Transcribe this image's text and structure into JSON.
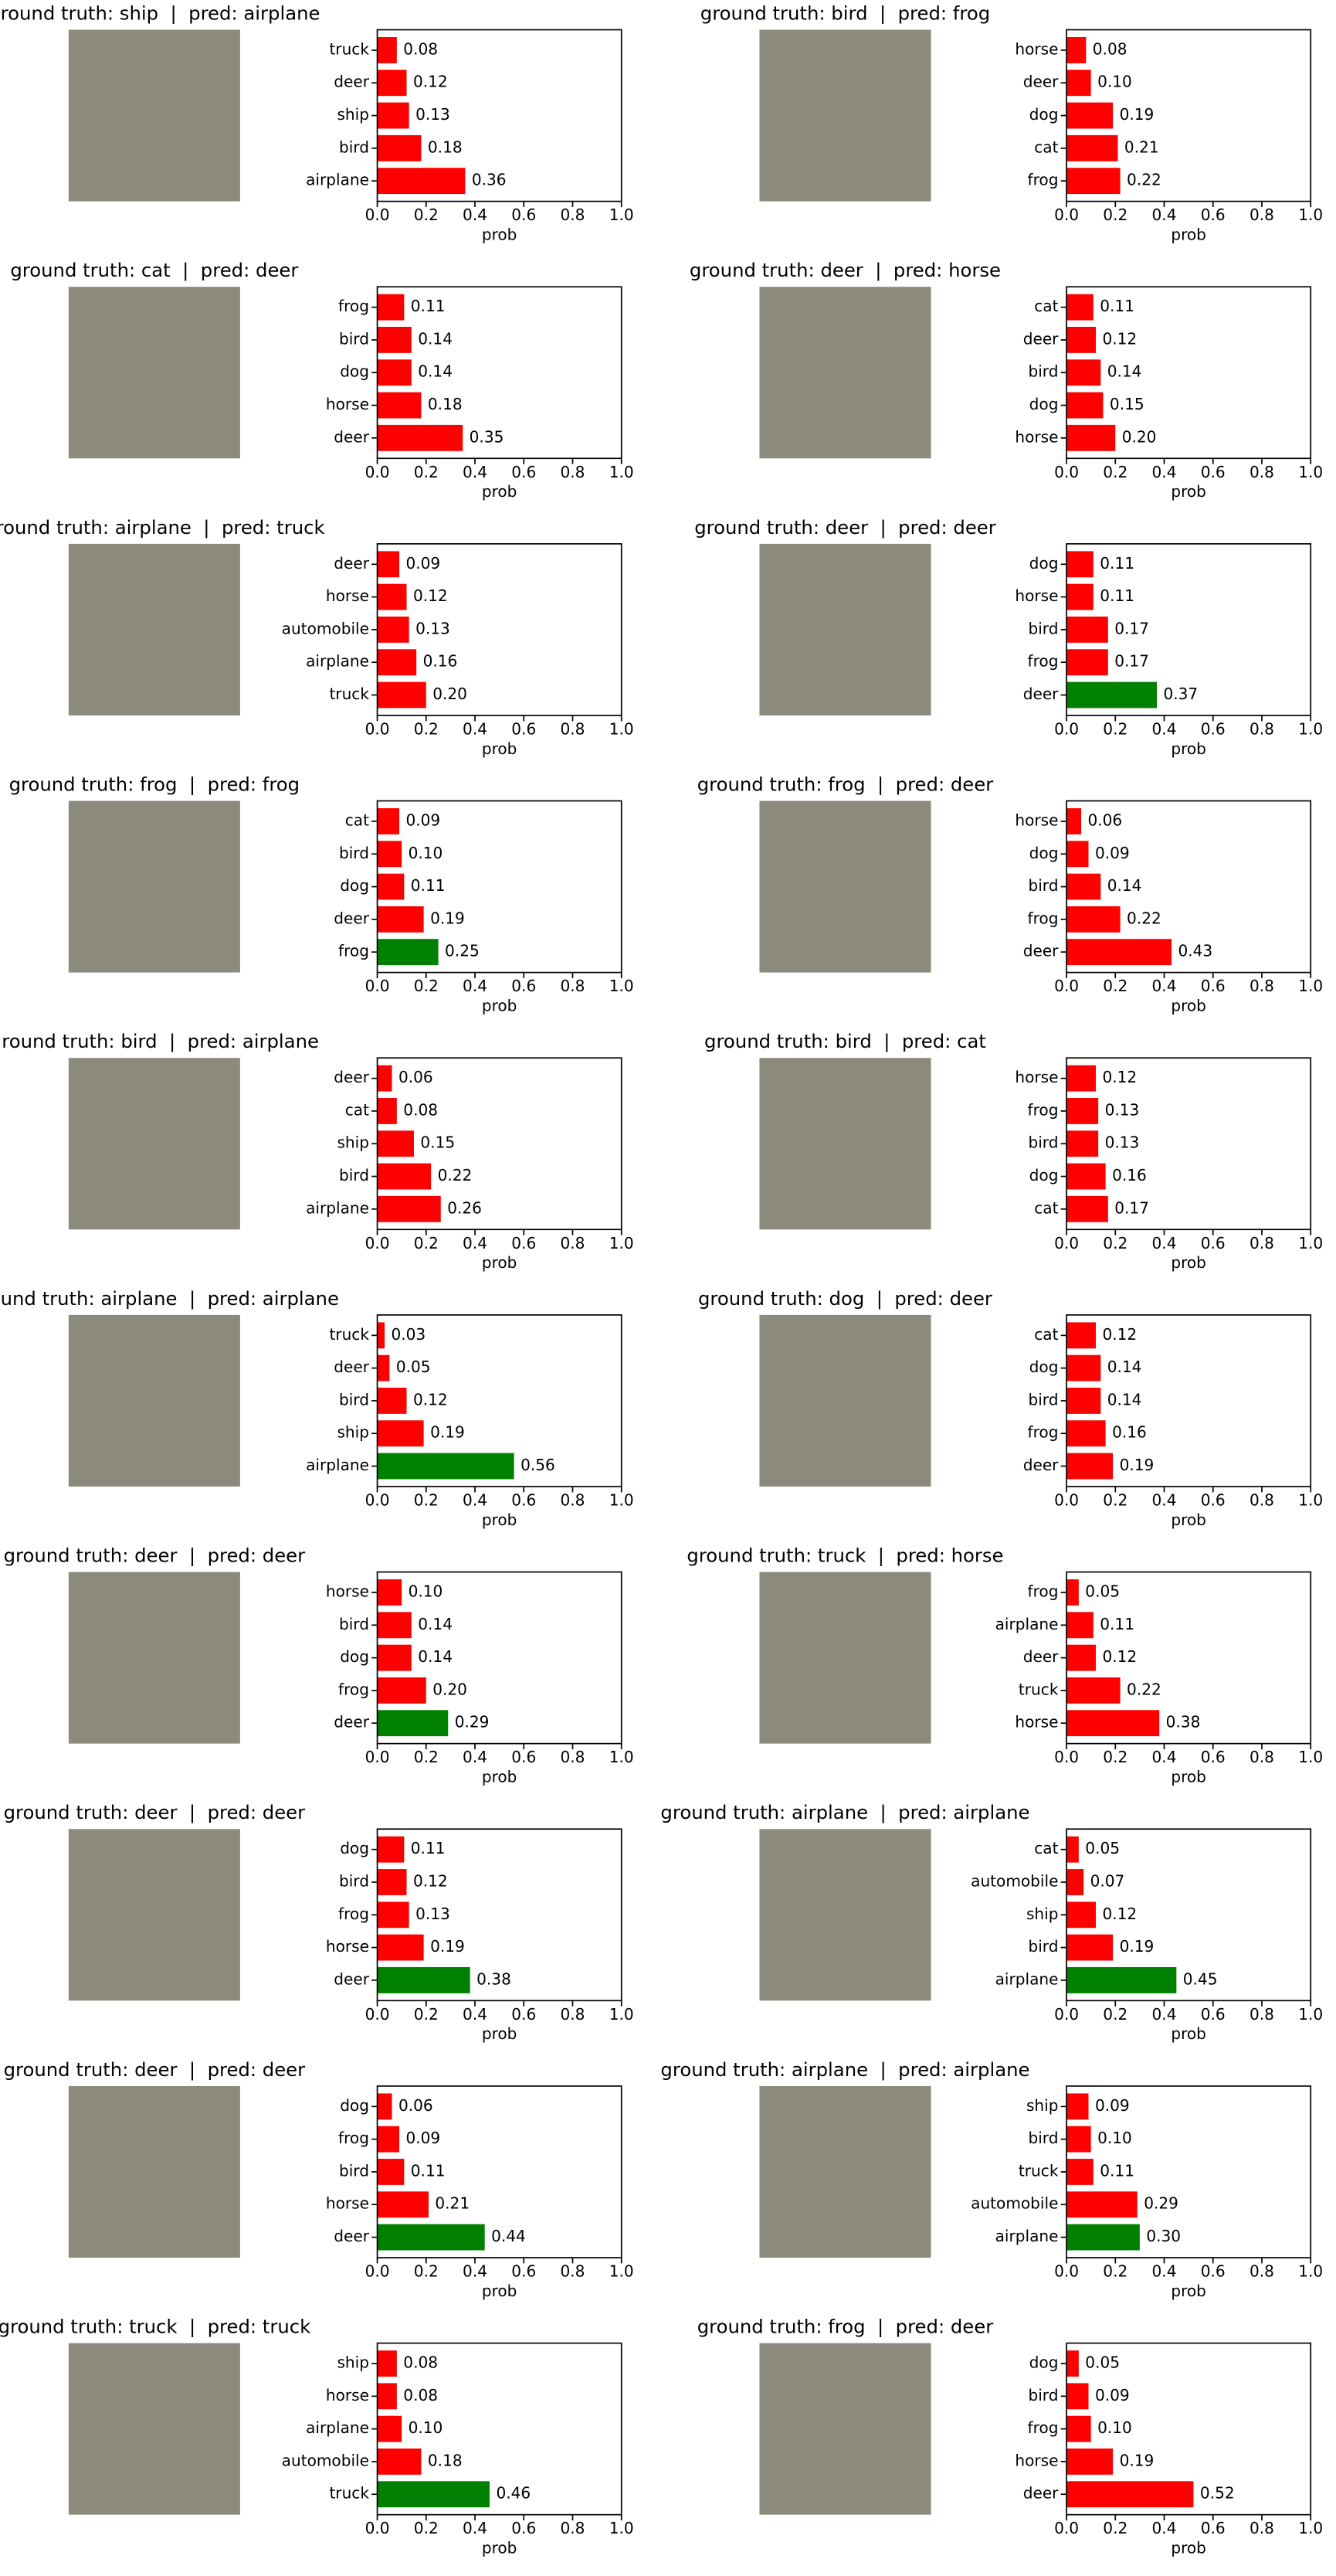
{
  "chart_data": [
    {
      "type": "bar",
      "orientation": "horizontal",
      "title": "ground truth: ship  |  pred: airplane",
      "categories": [
        "truck",
        "deer",
        "ship",
        "bird",
        "airplane"
      ],
      "values": [
        0.08,
        0.12,
        0.13,
        0.18,
        0.36
      ],
      "value_labels": [
        "0.08",
        "0.12",
        "0.13",
        "0.18",
        "0.36"
      ],
      "colors": [
        "#ff0000",
        "#ff0000",
        "#ff0000",
        "#ff0000",
        "#ff0000"
      ],
      "xlim": [
        0,
        1
      ],
      "xticks": [
        {
          "value": 0,
          "label": "0.0"
        },
        0.2,
        0.4,
        0.6,
        0.8,
        {
          "value": 1,
          "label": "1.0"
        }
      ],
      "xlabel": "prob"
    },
    {
      "type": "bar",
      "orientation": "horizontal",
      "title": "ground truth: bird  |  pred: frog",
      "categories": [
        "horse",
        "deer",
        "dog",
        "cat",
        "frog"
      ],
      "values": [
        0.08,
        0.1,
        0.19,
        0.21,
        0.22
      ],
      "value_labels": [
        "0.08",
        "0.10",
        "0.19",
        "0.21",
        "0.22"
      ],
      "colors": [
        "#ff0000",
        "#ff0000",
        "#ff0000",
        "#ff0000",
        "#ff0000"
      ],
      "xlim": [
        0,
        1
      ],
      "xticks": [
        {
          "value": 0,
          "label": "0.0"
        },
        0.2,
        0.4,
        0.6,
        0.8,
        {
          "value": 1,
          "label": "1.0"
        }
      ],
      "xlabel": "prob"
    },
    {
      "type": "bar",
      "orientation": "horizontal",
      "title": "ground truth: cat  |  pred: deer",
      "categories": [
        "frog",
        "bird",
        "dog",
        "horse",
        "deer"
      ],
      "values": [
        0.11,
        0.14,
        0.14,
        0.18,
        0.35
      ],
      "value_labels": [
        "0.11",
        "0.14",
        "0.14",
        "0.18",
        "0.35"
      ],
      "colors": [
        "#ff0000",
        "#ff0000",
        "#ff0000",
        "#ff0000",
        "#ff0000"
      ],
      "xlim": [
        0,
        1
      ],
      "xticks": [
        {
          "value": 0,
          "label": "0.0"
        },
        0.2,
        0.4,
        0.6,
        0.8,
        {
          "value": 1,
          "label": "1.0"
        }
      ],
      "xlabel": "prob"
    },
    {
      "type": "bar",
      "orientation": "horizontal",
      "title": "ground truth: deer  |  pred: horse",
      "categories": [
        "cat",
        "deer",
        "bird",
        "dog",
        "horse"
      ],
      "values": [
        0.11,
        0.12,
        0.14,
        0.15,
        0.2
      ],
      "value_labels": [
        "0.11",
        "0.12",
        "0.14",
        "0.15",
        "0.20"
      ],
      "colors": [
        "#ff0000",
        "#ff0000",
        "#ff0000",
        "#ff0000",
        "#ff0000"
      ],
      "xlim": [
        0,
        1
      ],
      "xticks": [
        {
          "value": 0,
          "label": "0.0"
        },
        0.2,
        0.4,
        0.6,
        0.8,
        {
          "value": 1,
          "label": "1.0"
        }
      ],
      "xlabel": "prob"
    },
    {
      "type": "bar",
      "orientation": "horizontal",
      "title": "ground truth: airplane  |  pred: truck",
      "categories": [
        "deer",
        "horse",
        "automobile",
        "airplane",
        "truck"
      ],
      "values": [
        0.09,
        0.12,
        0.13,
        0.16,
        0.2
      ],
      "value_labels": [
        "0.09",
        "0.12",
        "0.13",
        "0.16",
        "0.20"
      ],
      "colors": [
        "#ff0000",
        "#ff0000",
        "#ff0000",
        "#ff0000",
        "#ff0000"
      ],
      "xlim": [
        0,
        1
      ],
      "xticks": [
        {
          "value": 0,
          "label": "0.0"
        },
        0.2,
        0.4,
        0.6,
        0.8,
        {
          "value": 1,
          "label": "1.0"
        }
      ],
      "xlabel": "prob"
    },
    {
      "type": "bar",
      "orientation": "horizontal",
      "title": "ground truth: deer  |  pred: deer",
      "categories": [
        "dog",
        "horse",
        "bird",
        "frog",
        "deer"
      ],
      "values": [
        0.11,
        0.11,
        0.17,
        0.17,
        0.37
      ],
      "value_labels": [
        "0.11",
        "0.11",
        "0.17",
        "0.17",
        "0.37"
      ],
      "colors": [
        "#ff0000",
        "#ff0000",
        "#ff0000",
        "#ff0000",
        "#008000"
      ],
      "xlim": [
        0,
        1
      ],
      "xticks": [
        {
          "value": 0,
          "label": "0.0"
        },
        0.2,
        0.4,
        0.6,
        0.8,
        {
          "value": 1,
          "label": "1.0"
        }
      ],
      "xlabel": "prob"
    },
    {
      "type": "bar",
      "orientation": "horizontal",
      "title": "ground truth: frog  |  pred: frog",
      "categories": [
        "cat",
        "bird",
        "dog",
        "deer",
        "frog"
      ],
      "values": [
        0.09,
        0.1,
        0.11,
        0.19,
        0.25
      ],
      "value_labels": [
        "0.09",
        "0.10",
        "0.11",
        "0.19",
        "0.25"
      ],
      "colors": [
        "#ff0000",
        "#ff0000",
        "#ff0000",
        "#ff0000",
        "#008000"
      ],
      "xlim": [
        0,
        1
      ],
      "xticks": [
        {
          "value": 0,
          "label": "0.0"
        },
        0.2,
        0.4,
        0.6,
        0.8,
        {
          "value": 1,
          "label": "1.0"
        }
      ],
      "xlabel": "prob"
    },
    {
      "type": "bar",
      "orientation": "horizontal",
      "title": "ground truth: frog  |  pred: deer",
      "categories": [
        "horse",
        "dog",
        "bird",
        "frog",
        "deer"
      ],
      "values": [
        0.06,
        0.09,
        0.14,
        0.22,
        0.43
      ],
      "value_labels": [
        "0.06",
        "0.09",
        "0.14",
        "0.22",
        "0.43"
      ],
      "colors": [
        "#ff0000",
        "#ff0000",
        "#ff0000",
        "#ff0000",
        "#ff0000"
      ],
      "xlim": [
        0,
        1
      ],
      "xticks": [
        {
          "value": 0,
          "label": "0.0"
        },
        0.2,
        0.4,
        0.6,
        0.8,
        {
          "value": 1,
          "label": "1.0"
        }
      ],
      "xlabel": "prob"
    },
    {
      "type": "bar",
      "orientation": "horizontal",
      "title": "ground truth: bird  |  pred: airplane",
      "categories": [
        "deer",
        "cat",
        "ship",
        "bird",
        "airplane"
      ],
      "values": [
        0.06,
        0.08,
        0.15,
        0.22,
        0.26
      ],
      "value_labels": [
        "0.06",
        "0.08",
        "0.15",
        "0.22",
        "0.26"
      ],
      "colors": [
        "#ff0000",
        "#ff0000",
        "#ff0000",
        "#ff0000",
        "#ff0000"
      ],
      "xlim": [
        0,
        1
      ],
      "xticks": [
        {
          "value": 0,
          "label": "0.0"
        },
        0.2,
        0.4,
        0.6,
        0.8,
        {
          "value": 1,
          "label": "1.0"
        }
      ],
      "xlabel": "prob"
    },
    {
      "type": "bar",
      "orientation": "horizontal",
      "title": "ground truth: bird  |  pred: cat",
      "categories": [
        "horse",
        "frog",
        "bird",
        "dog",
        "cat"
      ],
      "values": [
        0.12,
        0.13,
        0.13,
        0.16,
        0.17
      ],
      "value_labels": [
        "0.12",
        "0.13",
        "0.13",
        "0.16",
        "0.17"
      ],
      "colors": [
        "#ff0000",
        "#ff0000",
        "#ff0000",
        "#ff0000",
        "#ff0000"
      ],
      "xlim": [
        0,
        1
      ],
      "xticks": [
        {
          "value": 0,
          "label": "0.0"
        },
        0.2,
        0.4,
        0.6,
        0.8,
        {
          "value": 1,
          "label": "1.0"
        }
      ],
      "xlabel": "prob"
    },
    {
      "type": "bar",
      "orientation": "horizontal",
      "title": "ground truth: airplane  |  pred: airplane",
      "categories": [
        "truck",
        "deer",
        "bird",
        "ship",
        "airplane"
      ],
      "values": [
        0.03,
        0.05,
        0.12,
        0.19,
        0.56
      ],
      "value_labels": [
        "0.03",
        "0.05",
        "0.12",
        "0.19",
        "0.56"
      ],
      "colors": [
        "#ff0000",
        "#ff0000",
        "#ff0000",
        "#ff0000",
        "#008000"
      ],
      "xlim": [
        0,
        1
      ],
      "xticks": [
        {
          "value": 0,
          "label": "0.0"
        },
        0.2,
        0.4,
        0.6,
        0.8,
        {
          "value": 1,
          "label": "1.0"
        }
      ],
      "xlabel": "prob"
    },
    {
      "type": "bar",
      "orientation": "horizontal",
      "title": "ground truth: dog  |  pred: deer",
      "categories": [
        "cat",
        "dog",
        "bird",
        "frog",
        "deer"
      ],
      "values": [
        0.12,
        0.14,
        0.14,
        0.16,
        0.19
      ],
      "value_labels": [
        "0.12",
        "0.14",
        "0.14",
        "0.16",
        "0.19"
      ],
      "colors": [
        "#ff0000",
        "#ff0000",
        "#ff0000",
        "#ff0000",
        "#ff0000"
      ],
      "xlim": [
        0,
        1
      ],
      "xticks": [
        {
          "value": 0,
          "label": "0.0"
        },
        0.2,
        0.4,
        0.6,
        0.8,
        {
          "value": 1,
          "label": "1.0"
        }
      ],
      "xlabel": "prob"
    },
    {
      "type": "bar",
      "orientation": "horizontal",
      "title": "ground truth: deer  |  pred: deer",
      "categories": [
        "horse",
        "bird",
        "dog",
        "frog",
        "deer"
      ],
      "values": [
        0.1,
        0.14,
        0.14,
        0.2,
        0.29
      ],
      "value_labels": [
        "0.10",
        "0.14",
        "0.14",
        "0.20",
        "0.29"
      ],
      "colors": [
        "#ff0000",
        "#ff0000",
        "#ff0000",
        "#ff0000",
        "#008000"
      ],
      "xlim": [
        0,
        1
      ],
      "xticks": [
        {
          "value": 0,
          "label": "0.0"
        },
        0.2,
        0.4,
        0.6,
        0.8,
        {
          "value": 1,
          "label": "1.0"
        }
      ],
      "xlabel": "prob"
    },
    {
      "type": "bar",
      "orientation": "horizontal",
      "title": "ground truth: truck  |  pred: horse",
      "categories": [
        "frog",
        "airplane",
        "deer",
        "truck",
        "horse"
      ],
      "values": [
        0.05,
        0.11,
        0.12,
        0.22,
        0.38
      ],
      "value_labels": [
        "0.05",
        "0.11",
        "0.12",
        "0.22",
        "0.38"
      ],
      "colors": [
        "#ff0000",
        "#ff0000",
        "#ff0000",
        "#ff0000",
        "#ff0000"
      ],
      "xlim": [
        0,
        1
      ],
      "xticks": [
        {
          "value": 0,
          "label": "0.0"
        },
        0.2,
        0.4,
        0.6,
        0.8,
        {
          "value": 1,
          "label": "1.0"
        }
      ],
      "xlabel": "prob"
    },
    {
      "type": "bar",
      "orientation": "horizontal",
      "title": "ground truth: deer  |  pred: deer",
      "categories": [
        "dog",
        "bird",
        "frog",
        "horse",
        "deer"
      ],
      "values": [
        0.11,
        0.12,
        0.13,
        0.19,
        0.38
      ],
      "value_labels": [
        "0.11",
        "0.12",
        "0.13",
        "0.19",
        "0.38"
      ],
      "colors": [
        "#ff0000",
        "#ff0000",
        "#ff0000",
        "#ff0000",
        "#008000"
      ],
      "xlim": [
        0,
        1
      ],
      "xticks": [
        {
          "value": 0,
          "label": "0.0"
        },
        0.2,
        0.4,
        0.6,
        0.8,
        {
          "value": 1,
          "label": "1.0"
        }
      ],
      "xlabel": "prob"
    },
    {
      "type": "bar",
      "orientation": "horizontal",
      "title": "ground truth: airplane  |  pred: airplane",
      "categories": [
        "cat",
        "automobile",
        "ship",
        "bird",
        "airplane"
      ],
      "values": [
        0.05,
        0.07,
        0.12,
        0.19,
        0.45
      ],
      "value_labels": [
        "0.05",
        "0.07",
        "0.12",
        "0.19",
        "0.45"
      ],
      "colors": [
        "#ff0000",
        "#ff0000",
        "#ff0000",
        "#ff0000",
        "#008000"
      ],
      "xlim": [
        0,
        1
      ],
      "xticks": [
        {
          "value": 0,
          "label": "0.0"
        },
        0.2,
        0.4,
        0.6,
        0.8,
        {
          "value": 1,
          "label": "1.0"
        }
      ],
      "xlabel": "prob"
    },
    {
      "type": "bar",
      "orientation": "horizontal",
      "title": "ground truth: deer  |  pred: deer",
      "categories": [
        "dog",
        "frog",
        "bird",
        "horse",
        "deer"
      ],
      "values": [
        0.06,
        0.09,
        0.11,
        0.21,
        0.44
      ],
      "value_labels": [
        "0.06",
        "0.09",
        "0.11",
        "0.21",
        "0.44"
      ],
      "colors": [
        "#ff0000",
        "#ff0000",
        "#ff0000",
        "#ff0000",
        "#008000"
      ],
      "xlim": [
        0,
        1
      ],
      "xticks": [
        {
          "value": 0,
          "label": "0.0"
        },
        0.2,
        0.4,
        0.6,
        0.8,
        {
          "value": 1,
          "label": "1.0"
        }
      ],
      "xlabel": "prob"
    },
    {
      "type": "bar",
      "orientation": "horizontal",
      "title": "ground truth: airplane  |  pred: airplane",
      "categories": [
        "ship",
        "bird",
        "truck",
        "automobile",
        "airplane"
      ],
      "values": [
        0.09,
        0.1,
        0.11,
        0.29,
        0.3
      ],
      "value_labels": [
        "0.09",
        "0.10",
        "0.11",
        "0.29",
        "0.30"
      ],
      "colors": [
        "#ff0000",
        "#ff0000",
        "#ff0000",
        "#ff0000",
        "#008000"
      ],
      "xlim": [
        0,
        1
      ],
      "xticks": [
        {
          "value": 0,
          "label": "0.0"
        },
        0.2,
        0.4,
        0.6,
        0.8,
        {
          "value": 1,
          "label": "1.0"
        }
      ],
      "xlabel": "prob"
    },
    {
      "type": "bar",
      "orientation": "horizontal",
      "title": "ground truth: truck  |  pred: truck",
      "categories": [
        "ship",
        "horse",
        "airplane",
        "automobile",
        "truck"
      ],
      "values": [
        0.08,
        0.08,
        0.1,
        0.18,
        0.46
      ],
      "value_labels": [
        "0.08",
        "0.08",
        "0.10",
        "0.18",
        "0.46"
      ],
      "colors": [
        "#ff0000",
        "#ff0000",
        "#ff0000",
        "#ff0000",
        "#008000"
      ],
      "xlim": [
        0,
        1
      ],
      "xticks": [
        {
          "value": 0,
          "label": "0.0"
        },
        0.2,
        0.4,
        0.6,
        0.8,
        {
          "value": 1,
          "label": "1.0"
        }
      ],
      "xlabel": "prob"
    },
    {
      "type": "bar",
      "orientation": "horizontal",
      "title": "ground truth: frog  |  pred: deer",
      "categories": [
        "dog",
        "bird",
        "frog",
        "horse",
        "deer"
      ],
      "values": [
        0.05,
        0.09,
        0.1,
        0.19,
        0.52
      ],
      "value_labels": [
        "0.05",
        "0.09",
        "0.10",
        "0.19",
        "0.52"
      ],
      "colors": [
        "#ff0000",
        "#ff0000",
        "#ff0000",
        "#ff0000",
        "#ff0000"
      ],
      "xlim": [
        0,
        1
      ],
      "xticks": [
        {
          "value": 0,
          "label": "0.0"
        },
        0.2,
        0.4,
        0.6,
        0.8,
        {
          "value": 1,
          "label": "1.0"
        }
      ],
      "xlabel": "prob"
    }
  ]
}
